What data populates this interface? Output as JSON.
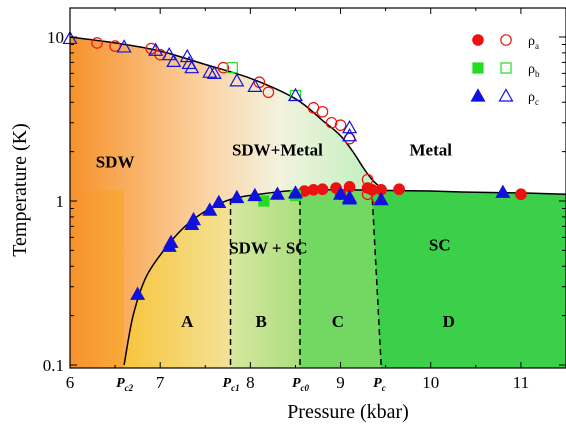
{
  "chart_data": {
    "type": "scatter",
    "xlabel": "Pressure (kbar)",
    "ylabel": "Temperature (K)",
    "xlim": [
      6,
      11.5
    ],
    "ylim": [
      0.1,
      12
    ],
    "yscale": "log",
    "x_ticks": [
      6,
      7,
      8,
      9,
      10,
      11
    ],
    "x_tick_labels": [
      "6",
      "7",
      "8",
      "9",
      "10",
      "11"
    ],
    "y_ticks": [
      0.1,
      1,
      10
    ],
    "y_tick_labels": [
      "0.1",
      "1",
      "10"
    ],
    "pressure_markers": [
      {
        "x": 6.6,
        "label": "P",
        "sub": "c2"
      },
      {
        "x": 7.78,
        "label": "P",
        "sub": "c1"
      },
      {
        "x": 8.55,
        "label": "P",
        "sub": "c0"
      },
      {
        "x": 9.45,
        "label": "P",
        "sub": "c"
      }
    ],
    "region_labels": [
      {
        "text": "SDW",
        "x": 6.5,
        "y": 1.6
      },
      {
        "text": "SDW+Metal",
        "x": 8.3,
        "y": 1.9
      },
      {
        "text": "Metal",
        "x": 10.0,
        "y": 1.9
      },
      {
        "text": "SDW + SC",
        "x": 8.2,
        "y": 0.48
      },
      {
        "text": "SC",
        "x": 10.1,
        "y": 0.5
      },
      {
        "text": "A",
        "x": 7.3,
        "y": 0.17
      },
      {
        "text": "B",
        "x": 8.12,
        "y": 0.17
      },
      {
        "text": "C",
        "x": 8.97,
        "y": 0.17
      },
      {
        "text": "D",
        "x": 10.2,
        "y": 0.17
      }
    ],
    "legend": {
      "position": "top-right",
      "entries": [
        {
          "series": "rho_a",
          "label": "ρ",
          "sub": "a",
          "color": "#ee1111",
          "marker": "circle"
        },
        {
          "series": "rho_b",
          "label": "ρ",
          "sub": "b",
          "color": "#22dd22",
          "marker": "square"
        },
        {
          "series": "rho_c",
          "label": "ρ",
          "sub": "c",
          "color": "#1111dd",
          "marker": "triangle"
        }
      ]
    },
    "series": [
      {
        "key": "rho_a_filled",
        "legend_ref": "rho_a",
        "marker": "circle",
        "filled": true,
        "color": "#ee1111",
        "points": [
          [
            8.6,
            1.15
          ],
          [
            8.7,
            1.17
          ],
          [
            8.8,
            1.18
          ],
          [
            8.95,
            1.2
          ],
          [
            9.0,
            1.1
          ],
          [
            9.1,
            1.22
          ],
          [
            9.3,
            1.2
          ],
          [
            9.35,
            1.17
          ],
          [
            9.45,
            1.17
          ],
          [
            9.65,
            1.18
          ],
          [
            11.0,
            1.1
          ]
        ]
      },
      {
        "key": "rho_a_open",
        "legend_ref": "rho_a",
        "marker": "circle",
        "filled": false,
        "color": "#ee1111",
        "points": [
          [
            6.3,
            9.2
          ],
          [
            6.5,
            8.8
          ],
          [
            6.9,
            8.5
          ],
          [
            7.0,
            7.8
          ],
          [
            7.7,
            6.5
          ],
          [
            8.1,
            5.3
          ],
          [
            8.2,
            4.6
          ],
          [
            8.7,
            3.7
          ],
          [
            8.8,
            3.5
          ],
          [
            8.9,
            3.0
          ],
          [
            9.0,
            2.9
          ],
          [
            9.1,
            2.4
          ],
          [
            9.3,
            1.35
          ],
          [
            9.3,
            1.1
          ],
          [
            9.4,
            1.05
          ]
        ]
      },
      {
        "key": "rho_b_filled",
        "legend_ref": "rho_b",
        "marker": "square",
        "filled": true,
        "color": "#22dd22",
        "points": [
          [
            8.15,
            1.0
          ],
          [
            8.5,
            1.08
          ]
        ]
      },
      {
        "key": "rho_b_open",
        "legend_ref": "rho_b",
        "marker": "square",
        "filled": false,
        "color": "#22dd22",
        "points": [
          [
            7.8,
            6.5
          ],
          [
            8.5,
            4.4
          ]
        ]
      },
      {
        "key": "rho_c_filled",
        "legend_ref": "rho_c",
        "marker": "triangle",
        "filled": true,
        "color": "#1111dd",
        "points": [
          [
            6.75,
            0.27
          ],
          [
            7.1,
            0.53
          ],
          [
            7.12,
            0.56
          ],
          [
            7.35,
            0.72
          ],
          [
            7.37,
            0.77
          ],
          [
            7.55,
            0.88
          ],
          [
            7.65,
            0.98
          ],
          [
            7.85,
            1.05
          ],
          [
            8.05,
            1.08
          ],
          [
            8.3,
            1.1
          ],
          [
            8.5,
            1.12
          ],
          [
            9.0,
            1.1
          ],
          [
            9.1,
            1.05
          ],
          [
            9.1,
            1.03
          ],
          [
            9.45,
            1.02
          ],
          [
            10.8,
            1.13
          ]
        ]
      },
      {
        "key": "rho_c_open",
        "legend_ref": "rho_c",
        "marker": "triangle",
        "filled": false,
        "color": "#1111dd",
        "points": [
          [
            6.0,
            9.8
          ],
          [
            6.6,
            8.7
          ],
          [
            6.95,
            8.3
          ],
          [
            7.1,
            7.8
          ],
          [
            7.15,
            7.1
          ],
          [
            7.3,
            7.6
          ],
          [
            7.32,
            6.9
          ],
          [
            7.35,
            6.5
          ],
          [
            7.55,
            6.1
          ],
          [
            7.6,
            6.0
          ],
          [
            7.85,
            5.4
          ],
          [
            8.05,
            5.0
          ],
          [
            8.5,
            4.4
          ],
          [
            9.1,
            2.8
          ],
          [
            9.1,
            2.5
          ]
        ]
      }
    ],
    "boundary_curves": [
      {
        "name": "upper",
        "style": "solid",
        "points": [
          [
            6.0,
            10.0
          ],
          [
            6.5,
            9.2
          ],
          [
            7.0,
            8.2
          ],
          [
            7.5,
            6.8
          ],
          [
            8.0,
            5.6
          ],
          [
            8.5,
            4.2
          ],
          [
            8.8,
            3.1
          ],
          [
            9.0,
            2.5
          ],
          [
            9.15,
            1.95
          ],
          [
            9.25,
            1.6
          ],
          [
            9.35,
            1.35
          ],
          [
            9.45,
            1.2
          ]
        ]
      },
      {
        "name": "lower",
        "style": "solid",
        "points": [
          [
            6.6,
            0.1
          ],
          [
            6.7,
            0.2
          ],
          [
            6.85,
            0.35
          ],
          [
            7.1,
            0.55
          ],
          [
            7.3,
            0.72
          ],
          [
            7.55,
            0.9
          ],
          [
            7.8,
            1.03
          ],
          [
            8.1,
            1.1
          ],
          [
            8.5,
            1.16
          ],
          [
            9.0,
            1.17
          ],
          [
            9.45,
            1.16
          ],
          [
            10.0,
            1.15
          ],
          [
            10.5,
            1.13
          ],
          [
            11.0,
            1.12
          ],
          [
            11.5,
            1.1
          ]
        ]
      },
      {
        "name": "pc1",
        "style": "dashed",
        "points": [
          [
            7.78,
            0.1
          ],
          [
            7.78,
            1.05
          ]
        ]
      },
      {
        "name": "pc0",
        "style": "dashed",
        "points": [
          [
            8.55,
            0.1
          ],
          [
            8.55,
            1.17
          ]
        ]
      },
      {
        "name": "pc",
        "style": "dashed",
        "points": [
          [
            9.45,
            0.1
          ],
          [
            9.35,
            1.1
          ]
        ]
      }
    ],
    "region_colors": {
      "sdw": "#f8922f",
      "metal": "#ffffff",
      "upper_mid": "#c4f0c0",
      "zone_A": "#f4cb45",
      "zone_B": "#c3e08a",
      "zone_C": "#72d862",
      "zone_D": "#3bcf4a"
    }
  }
}
